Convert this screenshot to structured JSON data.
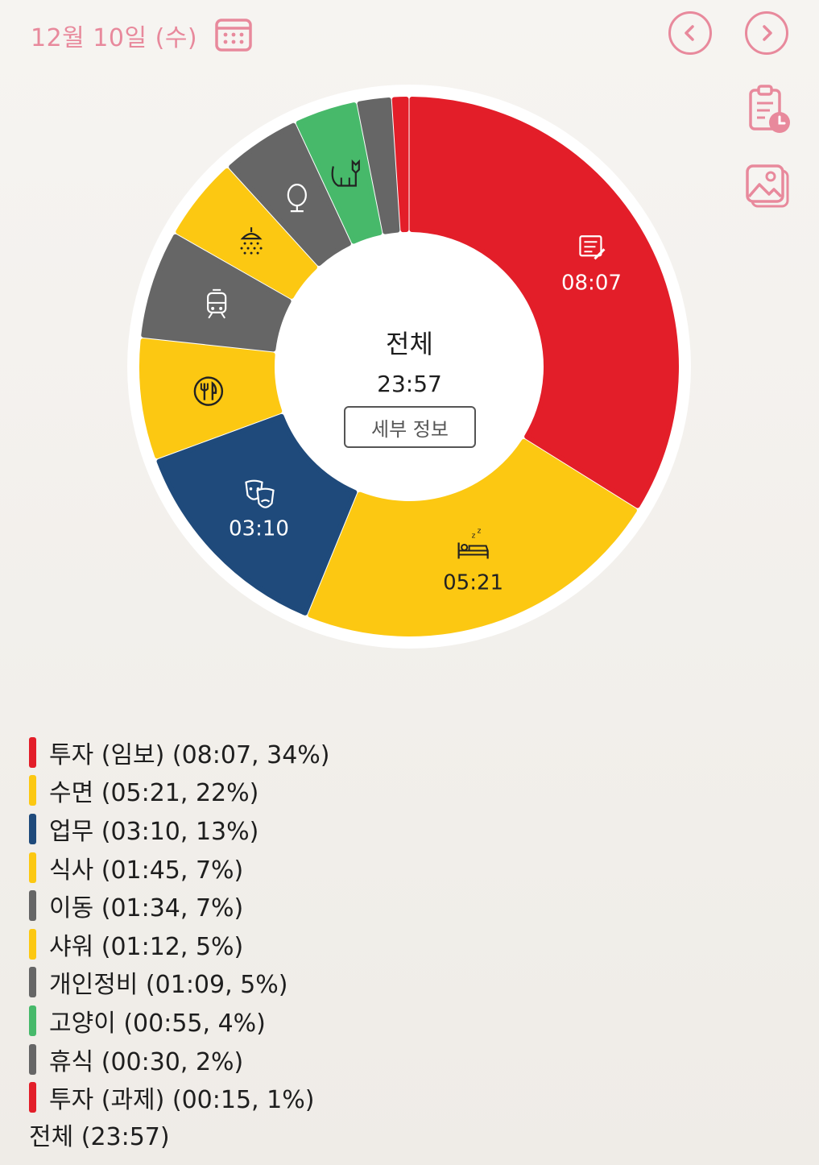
{
  "header": {
    "date": "12월 10일 (수)",
    "icons": [
      "calendar-icon",
      "chevron-left-icon",
      "chevron-right-icon",
      "clipboard-clock-icon",
      "image-gallery-icon"
    ]
  },
  "colors": {
    "accent": "#e8899c",
    "red": "#e31e29",
    "yellow": "#fcc812",
    "navy": "#1f4a7b",
    "gray": "#666666",
    "green": "#47b96a"
  },
  "chart_data": {
    "type": "pie",
    "center_title": "전체",
    "center_total": "23:57",
    "detail_button": "세부 정보",
    "slices": [
      {
        "label": "투자 (임보)",
        "time": "08:07",
        "minutes": 487,
        "percent": 34,
        "color": "#e31e29",
        "icon": "memo-pencil-icon",
        "show_time": "08:07"
      },
      {
        "label": "수면",
        "time": "05:21",
        "minutes": 321,
        "percent": 22,
        "color": "#fcc812",
        "icon": "bed-sleep-icon",
        "show_time": "05:21"
      },
      {
        "label": "업무",
        "time": "03:10",
        "minutes": 190,
        "percent": 13,
        "color": "#1f4a7b",
        "icon": "theater-masks-icon",
        "show_time": "03:10"
      },
      {
        "label": "식사",
        "time": "01:45",
        "minutes": 105,
        "percent": 7,
        "color": "#fcc812",
        "icon": "fork-knife-icon",
        "show_time": ""
      },
      {
        "label": "이동",
        "time": "01:34",
        "minutes": 94,
        "percent": 7,
        "color": "#666666",
        "icon": "train-icon",
        "show_time": ""
      },
      {
        "label": "샤워",
        "time": "01:12",
        "minutes": 72,
        "percent": 5,
        "color": "#fcc812",
        "icon": "shower-icon",
        "show_time": ""
      },
      {
        "label": "개인정비",
        "time": "01:09",
        "minutes": 69,
        "percent": 5,
        "color": "#666666",
        "icon": "mirror-icon",
        "show_time": ""
      },
      {
        "label": "고양이",
        "time": "00:55",
        "minutes": 55,
        "percent": 4,
        "color": "#47b96a",
        "icon": "cat-icon",
        "show_time": ""
      },
      {
        "label": "휴식",
        "time": "00:30",
        "minutes": 30,
        "percent": 2,
        "color": "#666666",
        "icon": "",
        "show_time": ""
      },
      {
        "label": "투자 (과제)",
        "time": "00:15",
        "minutes": 15,
        "percent": 1,
        "color": "#e31e29",
        "icon": "",
        "show_time": ""
      }
    ]
  },
  "legend": {
    "items": [
      {
        "text": "투자 (임보) (08:07, 34%)",
        "color": "#e31e29"
      },
      {
        "text": "수면 (05:21, 22%)",
        "color": "#fcc812"
      },
      {
        "text": "업무 (03:10, 13%)",
        "color": "#1f4a7b"
      },
      {
        "text": "식사 (01:45, 7%)",
        "color": "#fcc812"
      },
      {
        "text": "이동 (01:34, 7%)",
        "color": "#666666"
      },
      {
        "text": "샤워 (01:12, 5%)",
        "color": "#fcc812"
      },
      {
        "text": "개인정비 (01:09, 5%)",
        "color": "#666666"
      },
      {
        "text": "고양이 (00:55, 4%)",
        "color": "#47b96a"
      },
      {
        "text": "휴식 (00:30, 2%)",
        "color": "#666666"
      },
      {
        "text": "투자 (과제) (00:15, 1%)",
        "color": "#e31e29"
      }
    ],
    "total": "전체 (23:57)"
  }
}
